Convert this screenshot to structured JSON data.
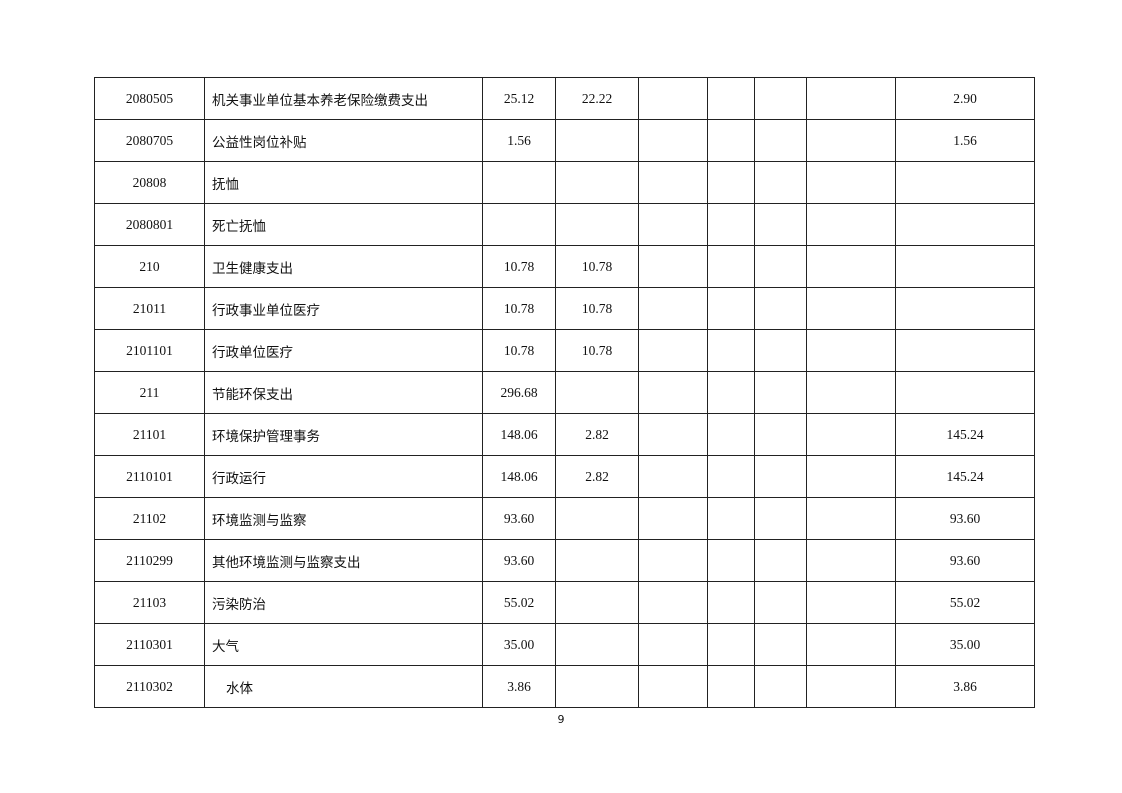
{
  "table": {
    "rows": [
      {
        "code": "2080505",
        "name": "机关事业单位基本养老保险缴费支出",
        "c1": "25.12",
        "c2": "22.22",
        "c3": "",
        "c4": "",
        "c5": "",
        "c6": "",
        "c7": "2.90"
      },
      {
        "code": "2080705",
        "name": "公益性岗位补贴",
        "c1": "1.56",
        "c2": "",
        "c3": "",
        "c4": "",
        "c5": "",
        "c6": "",
        "c7": "1.56"
      },
      {
        "code": "20808",
        "name": "抚恤",
        "c1": "",
        "c2": "",
        "c3": "",
        "c4": "",
        "c5": "",
        "c6": "",
        "c7": ""
      },
      {
        "code": "2080801",
        "name": "死亡抚恤",
        "c1": "",
        "c2": "",
        "c3": "",
        "c4": "",
        "c5": "",
        "c6": "",
        "c7": ""
      },
      {
        "code": "210",
        "name": "卫生健康支出",
        "c1": "10.78",
        "c2": "10.78",
        "c3": "",
        "c4": "",
        "c5": "",
        "c6": "",
        "c7": ""
      },
      {
        "code": "21011",
        "name": "行政事业单位医疗",
        "c1": "10.78",
        "c2": "10.78",
        "c3": "",
        "c4": "",
        "c5": "",
        "c6": "",
        "c7": ""
      },
      {
        "code": "2101101",
        "name": "行政单位医疗",
        "c1": "10.78",
        "c2": "10.78",
        "c3": "",
        "c4": "",
        "c5": "",
        "c6": "",
        "c7": ""
      },
      {
        "code": "211",
        "name": "节能环保支出",
        "c1": "296.68",
        "c2": "",
        "c3": "",
        "c4": "",
        "c5": "",
        "c6": "",
        "c7": ""
      },
      {
        "code": "21101",
        "name": "环境保护管理事务",
        "c1": "148.06",
        "c2": "2.82",
        "c3": "",
        "c4": "",
        "c5": "",
        "c6": "",
        "c7": "145.24"
      },
      {
        "code": "2110101",
        "name": "行政运行",
        "c1": "148.06",
        "c2": "2.82",
        "c3": "",
        "c4": "",
        "c5": "",
        "c6": "",
        "c7": "145.24"
      },
      {
        "code": "21102",
        "name": "环境监测与监察",
        "c1": "93.60",
        "c2": "",
        "c3": "",
        "c4": "",
        "c5": "",
        "c6": "",
        "c7": "93.60"
      },
      {
        "code": "2110299",
        "name": "其他环境监测与监察支出",
        "c1": "93.60",
        "c2": "",
        "c3": "",
        "c4": "",
        "c5": "",
        "c6": "",
        "c7": "93.60"
      },
      {
        "code": "21103",
        "name": "污染防治",
        "c1": "55.02",
        "c2": "",
        "c3": "",
        "c4": "",
        "c5": "",
        "c6": "",
        "c7": "55.02"
      },
      {
        "code": "2110301",
        "name": "大气",
        "c1": "35.00",
        "c2": "",
        "c3": "",
        "c4": "",
        "c5": "",
        "c6": "",
        "c7": "35.00"
      },
      {
        "code": "2110302",
        "name": "水体",
        "c1": "3.86",
        "c2": "",
        "c3": "",
        "c4": "",
        "c5": "",
        "c6": "",
        "c7": "3.86"
      }
    ]
  },
  "page_number": "9"
}
